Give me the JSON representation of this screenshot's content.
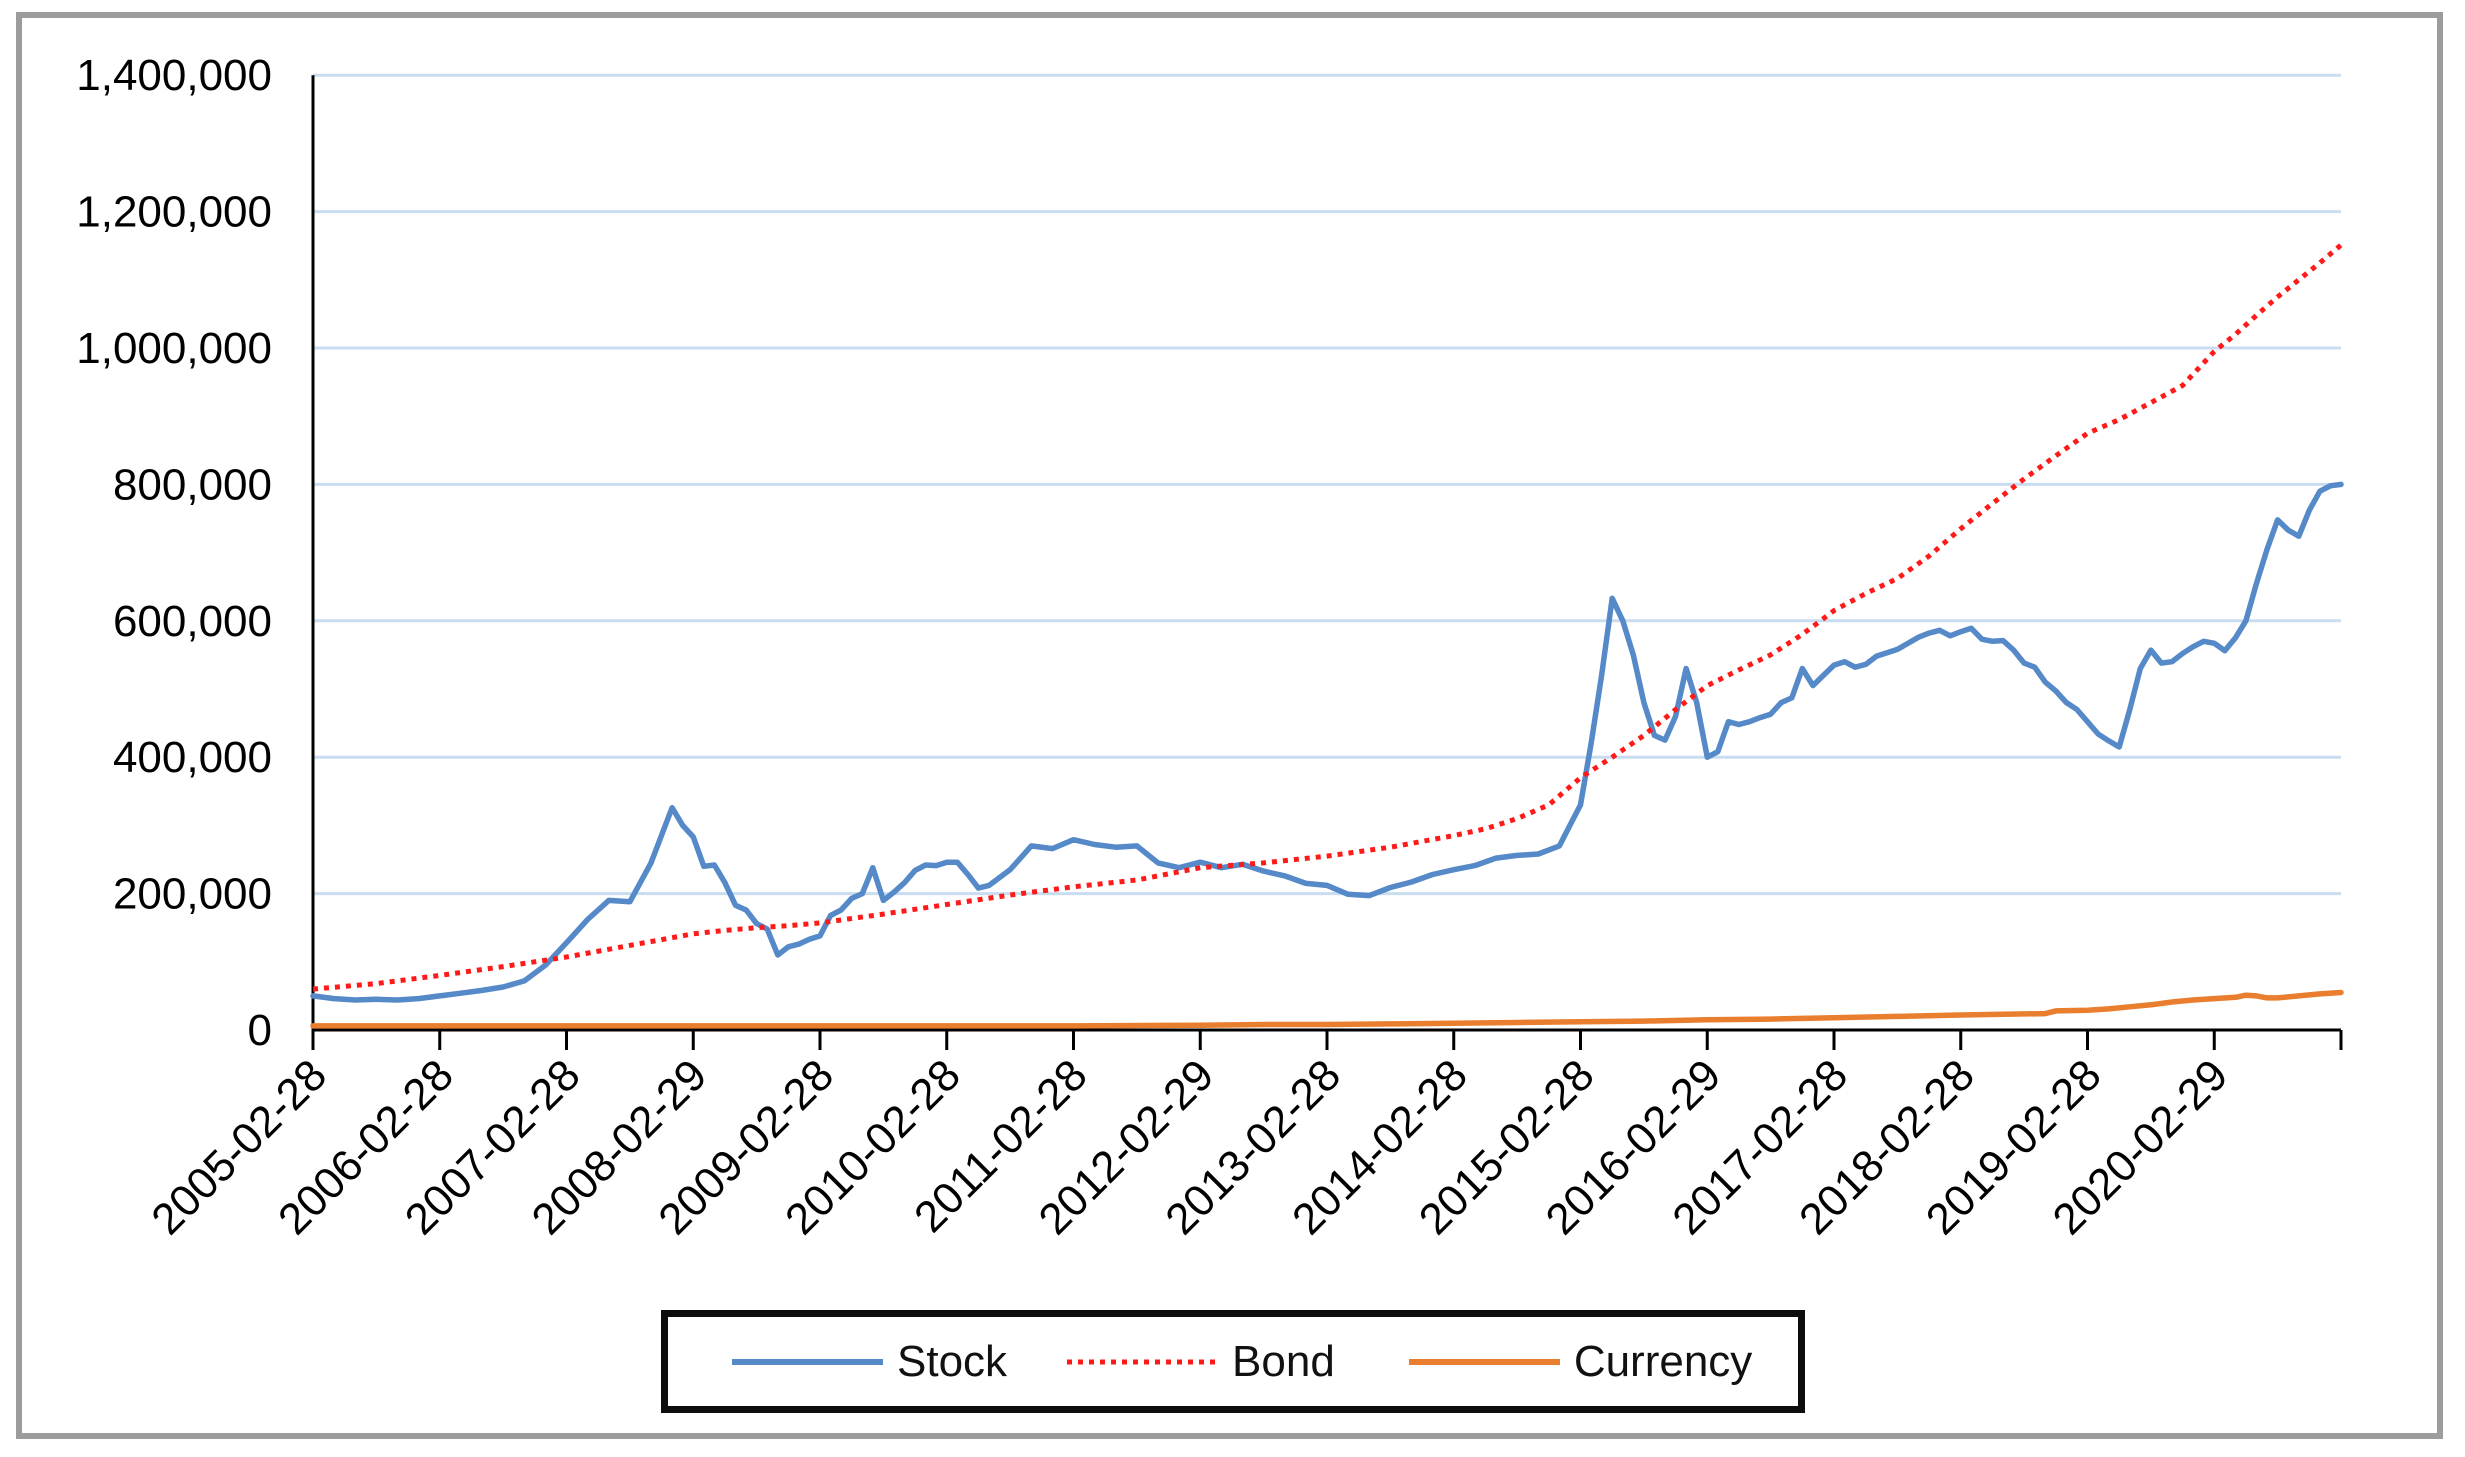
{
  "chart_data": {
    "type": "line",
    "title": "",
    "xlabel": "",
    "ylabel": "",
    "grid": true,
    "legend_position": "bottom",
    "x_axis": {
      "unit": "months_since_2005_02",
      "tick_interval_months": 12,
      "axis_end_month": 192,
      "tick_labels": [
        "2005-02-28",
        "2006-02-28",
        "2007-02-28",
        "2008-02-29",
        "2009-02-28",
        "2010-02-28",
        "2011-02-28",
        "2012-02-29",
        "2013-02-28",
        "2014-02-28",
        "2015-02-28",
        "2016-02-29",
        "2017-02-28",
        "2018-02-28",
        "2019-02-28",
        "2020-02-29"
      ]
    },
    "y_axis": {
      "min": 0,
      "max": 1400000,
      "tick_step": 200000,
      "tick_labels": [
        "0",
        "200,000",
        "400,000",
        "600,000",
        "800,000",
        "1,000,000",
        "1,200,000",
        "1,400,000"
      ]
    },
    "style": {
      "gridline_color": "#c9ddf1",
      "axis_color": "#000000",
      "background": "#ffffff",
      "frame_border_color": "#9c9c9c",
      "legend_border_color": "#0d0d0d"
    },
    "series": [
      {
        "name": "Stock",
        "color": "#5589c8",
        "style": "solid",
        "points": [
          [
            0,
            50000
          ],
          [
            2,
            46000
          ],
          [
            4,
            44000
          ],
          [
            6,
            45000
          ],
          [
            8,
            44000
          ],
          [
            10,
            46000
          ],
          [
            12,
            50000
          ],
          [
            14,
            54000
          ],
          [
            16,
            58000
          ],
          [
            18,
            63000
          ],
          [
            20,
            72000
          ],
          [
            22,
            95000
          ],
          [
            24,
            128000
          ],
          [
            26,
            162000
          ],
          [
            28,
            190000
          ],
          [
            30,
            188000
          ],
          [
            32,
            245000
          ],
          [
            34,
            326000
          ],
          [
            35,
            300000
          ],
          [
            36,
            283000
          ],
          [
            37,
            240000
          ],
          [
            38,
            242000
          ],
          [
            39,
            216000
          ],
          [
            40,
            183000
          ],
          [
            41,
            176000
          ],
          [
            42,
            156000
          ],
          [
            43,
            148000
          ],
          [
            44,
            110000
          ],
          [
            45,
            122000
          ],
          [
            46,
            126000
          ],
          [
            47,
            133000
          ],
          [
            48,
            138000
          ],
          [
            49,
            168000
          ],
          [
            50,
            176000
          ],
          [
            51,
            193000
          ],
          [
            52,
            200000
          ],
          [
            53,
            238000
          ],
          [
            54,
            190000
          ],
          [
            55,
            202000
          ],
          [
            56,
            216000
          ],
          [
            57,
            234000
          ],
          [
            58,
            242000
          ],
          [
            59,
            241000
          ],
          [
            60,
            246000
          ],
          [
            61,
            246000
          ],
          [
            62,
            228000
          ],
          [
            63,
            208000
          ],
          [
            64,
            212000
          ],
          [
            66,
            235000
          ],
          [
            68,
            270000
          ],
          [
            70,
            266000
          ],
          [
            72,
            279000
          ],
          [
            74,
            272000
          ],
          [
            76,
            268000
          ],
          [
            78,
            270000
          ],
          [
            80,
            245000
          ],
          [
            82,
            238000
          ],
          [
            84,
            246000
          ],
          [
            86,
            238000
          ],
          [
            88,
            243000
          ],
          [
            90,
            233000
          ],
          [
            92,
            226000
          ],
          [
            94,
            215000
          ],
          [
            96,
            212000
          ],
          [
            98,
            199000
          ],
          [
            100,
            197000
          ],
          [
            102,
            209000
          ],
          [
            104,
            217000
          ],
          [
            106,
            228000
          ],
          [
            108,
            235000
          ],
          [
            110,
            241000
          ],
          [
            112,
            252000
          ],
          [
            114,
            256000
          ],
          [
            116,
            258000
          ],
          [
            118,
            270000
          ],
          [
            119,
            300000
          ],
          [
            120,
            330000
          ],
          [
            121,
            420000
          ],
          [
            122,
            520000
          ],
          [
            123,
            633000
          ],
          [
            124,
            600000
          ],
          [
            125,
            550000
          ],
          [
            126,
            480000
          ],
          [
            127,
            432000
          ],
          [
            128,
            425000
          ],
          [
            129,
            460000
          ],
          [
            130,
            530000
          ],
          [
            131,
            480000
          ],
          [
            132,
            400000
          ],
          [
            133,
            408000
          ],
          [
            134,
            452000
          ],
          [
            135,
            448000
          ],
          [
            136,
            452000
          ],
          [
            137,
            458000
          ],
          [
            138,
            463000
          ],
          [
            139,
            480000
          ],
          [
            140,
            487000
          ],
          [
            141,
            530000
          ],
          [
            142,
            505000
          ],
          [
            143,
            520000
          ],
          [
            144,
            535000
          ],
          [
            145,
            540000
          ],
          [
            146,
            532000
          ],
          [
            147,
            536000
          ],
          [
            148,
            548000
          ],
          [
            150,
            558000
          ],
          [
            152,
            576000
          ],
          [
            153,
            582000
          ],
          [
            154,
            586000
          ],
          [
            155,
            578000
          ],
          [
            156,
            584000
          ],
          [
            157,
            589000
          ],
          [
            158,
            573000
          ],
          [
            159,
            570000
          ],
          [
            160,
            571000
          ],
          [
            161,
            557000
          ],
          [
            162,
            538000
          ],
          [
            163,
            532000
          ],
          [
            164,
            510000
          ],
          [
            165,
            497000
          ],
          [
            166,
            480000
          ],
          [
            167,
            470000
          ],
          [
            168,
            452000
          ],
          [
            169,
            434000
          ],
          [
            170,
            424000
          ],
          [
            171,
            415000
          ],
          [
            172,
            470000
          ],
          [
            173,
            530000
          ],
          [
            174,
            557000
          ],
          [
            175,
            538000
          ],
          [
            176,
            540000
          ],
          [
            177,
            552000
          ],
          [
            178,
            562000
          ],
          [
            179,
            570000
          ],
          [
            180,
            567000
          ],
          [
            181,
            556000
          ],
          [
            182,
            575000
          ],
          [
            183,
            600000
          ],
          [
            184,
            655000
          ],
          [
            185,
            705000
          ],
          [
            186,
            748000
          ],
          [
            187,
            733000
          ],
          [
            188,
            724000
          ],
          [
            189,
            762000
          ],
          [
            190,
            790000
          ],
          [
            191,
            798000
          ],
          [
            192,
            800000
          ]
        ]
      },
      {
        "name": "Bond",
        "color": "#ff1a1a",
        "style": "dotted",
        "points": [
          [
            0,
            60000
          ],
          [
            6,
            68000
          ],
          [
            12,
            80000
          ],
          [
            18,
            93000
          ],
          [
            24,
            107000
          ],
          [
            30,
            124000
          ],
          [
            36,
            141000
          ],
          [
            39,
            146000
          ],
          [
            42,
            150000
          ],
          [
            45,
            153000
          ],
          [
            48,
            157000
          ],
          [
            54,
            170000
          ],
          [
            60,
            184000
          ],
          [
            66,
            198000
          ],
          [
            72,
            210000
          ],
          [
            78,
            220000
          ],
          [
            84,
            238000
          ],
          [
            90,
            245000
          ],
          [
            96,
            255000
          ],
          [
            102,
            268000
          ],
          [
            108,
            285000
          ],
          [
            111,
            295000
          ],
          [
            114,
            310000
          ],
          [
            117,
            330000
          ],
          [
            120,
            370000
          ],
          [
            123,
            400000
          ],
          [
            126,
            432000
          ],
          [
            129,
            470000
          ],
          [
            132,
            505000
          ],
          [
            135,
            528000
          ],
          [
            138,
            550000
          ],
          [
            141,
            580000
          ],
          [
            144,
            615000
          ],
          [
            147,
            640000
          ],
          [
            150,
            662000
          ],
          [
            153,
            695000
          ],
          [
            156,
            735000
          ],
          [
            159,
            772000
          ],
          [
            162,
            808000
          ],
          [
            165,
            842000
          ],
          [
            168,
            875000
          ],
          [
            171,
            895000
          ],
          [
            174,
            920000
          ],
          [
            177,
            945000
          ],
          [
            180,
            995000
          ],
          [
            182,
            1020000
          ],
          [
            184,
            1048000
          ],
          [
            186,
            1075000
          ],
          [
            188,
            1100000
          ],
          [
            190,
            1125000
          ],
          [
            192,
            1151000
          ]
        ]
      },
      {
        "name": "Currency",
        "color": "#e97e2e",
        "style": "solid",
        "points": [
          [
            0,
            6000
          ],
          [
            12,
            6000
          ],
          [
            24,
            6000
          ],
          [
            36,
            6000
          ],
          [
            48,
            6000
          ],
          [
            60,
            6000
          ],
          [
            72,
            6000
          ],
          [
            84,
            7000
          ],
          [
            90,
            8000
          ],
          [
            96,
            8000
          ],
          [
            102,
            9000
          ],
          [
            108,
            10000
          ],
          [
            114,
            11000
          ],
          [
            120,
            12000
          ],
          [
            126,
            13000
          ],
          [
            132,
            15000
          ],
          [
            138,
            16000
          ],
          [
            144,
            18000
          ],
          [
            150,
            20000
          ],
          [
            156,
            22000
          ],
          [
            160,
            23000
          ],
          [
            164,
            24000
          ],
          [
            165,
            28000
          ],
          [
            168,
            29000
          ],
          [
            170,
            31000
          ],
          [
            172,
            34000
          ],
          [
            174,
            37000
          ],
          [
            176,
            41000
          ],
          [
            178,
            44000
          ],
          [
            180,
            46000
          ],
          [
            182,
            48000
          ],
          [
            183,
            51000
          ],
          [
            184,
            50000
          ],
          [
            185,
            47000
          ],
          [
            186,
            47000
          ],
          [
            188,
            50000
          ],
          [
            190,
            53000
          ],
          [
            192,
            55000
          ]
        ]
      }
    ]
  },
  "legend": {
    "items": [
      {
        "label": "Stock"
      },
      {
        "label": "Bond"
      },
      {
        "label": "Currency"
      }
    ]
  }
}
